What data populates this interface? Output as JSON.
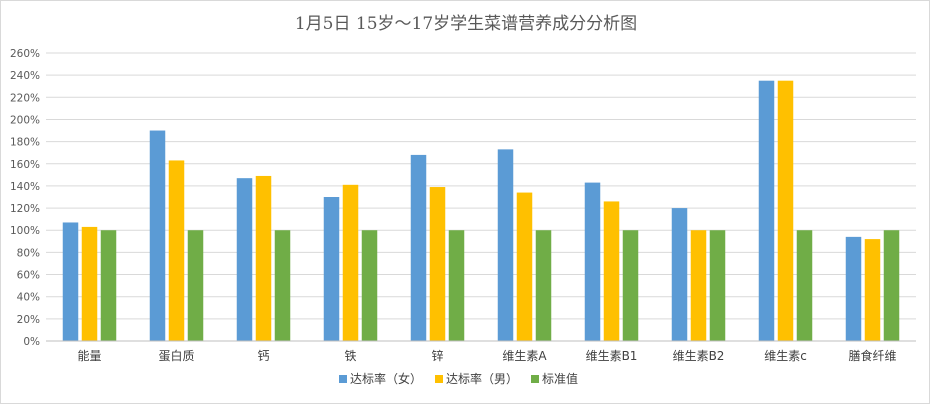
{
  "chart_data": {
    "type": "bar",
    "title": "1月5日 15岁～17岁学生菜谱营养成分分析图",
    "xlabel": "",
    "ylabel": "",
    "categories": [
      "能量",
      "蛋白质",
      "钙",
      "铁",
      "锌",
      "维生素A",
      "维生素B1",
      "维生素B2",
      "维生素c",
      "膳食纤维"
    ],
    "series": [
      {
        "name": "达标率（女）",
        "color": "#5b9bd5",
        "values": [
          107,
          190,
          147,
          130,
          168,
          173,
          143,
          120,
          235,
          94
        ]
      },
      {
        "name": "达标率（男）",
        "color": "#ffc000",
        "values": [
          103,
          163,
          149,
          141,
          139,
          134,
          126,
          100,
          235,
          92
        ]
      },
      {
        "name": "标准值",
        "color": "#70ad47",
        "values": [
          100,
          100,
          100,
          100,
          100,
          100,
          100,
          100,
          100,
          100
        ]
      }
    ],
    "ylim": [
      0,
      260
    ],
    "ytick_step": 20,
    "ytick_labels": [
      "0%",
      "20%",
      "40%",
      "60%",
      "80%",
      "100%",
      "120%",
      "140%",
      "160%",
      "180%",
      "200%",
      "220%",
      "240%",
      "260%"
    ],
    "grid": true,
    "legend_position": "bottom"
  }
}
